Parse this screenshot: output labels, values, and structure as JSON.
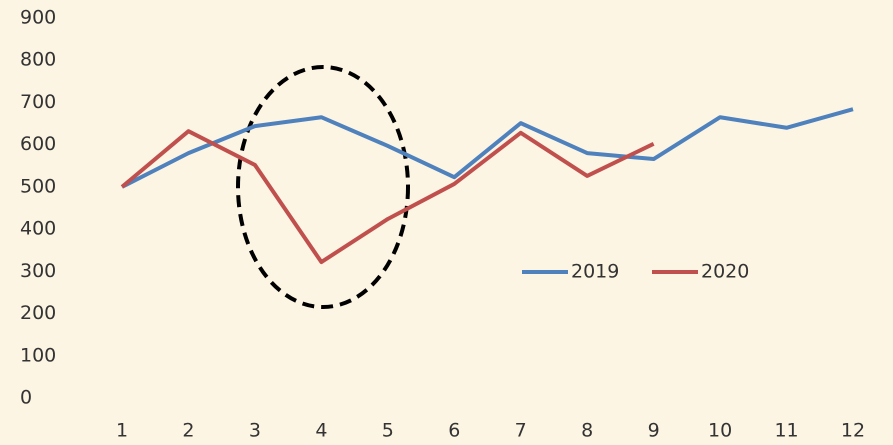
{
  "chart_data": {
    "type": "line",
    "categories": [
      "1",
      "2",
      "3",
      "4",
      "5",
      "6",
      "7",
      "8",
      "9",
      "10",
      "11",
      "12"
    ],
    "series": [
      {
        "name": "2019",
        "color": "#4f81bd",
        "values": [
          500,
          580,
          644,
          665,
          597,
          523,
          651,
          580,
          566,
          665,
          640,
          684
        ]
      },
      {
        "name": "2020",
        "color": "#c0504d",
        "values": [
          500,
          632,
          552,
          322,
          424,
          507,
          628,
          526,
          602,
          null,
          null,
          null
        ]
      }
    ],
    "ylim": [
      0,
      900
    ],
    "yticks": [
      0,
      100,
      200,
      300,
      400,
      500,
      600,
      700,
      800,
      900
    ]
  }
}
